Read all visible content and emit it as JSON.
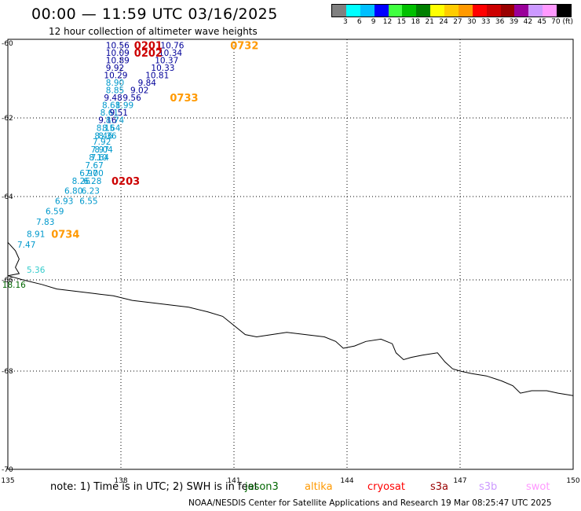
{
  "header": {
    "title": "00:00 — 11:59 UTC 03/16/2025",
    "subtitle": "12 hour collection of altimeter wave heights"
  },
  "legend": {
    "colors": [
      "#808080",
      "#00ffff",
      "#00bfff",
      "#0000ff",
      "#40ff40",
      "#00c000",
      "#008000",
      "#ffff00",
      "#ffcc00",
      "#ff9900",
      "#ff0000",
      "#cc0000",
      "#990000",
      "#990099",
      "#cc99ff",
      "#ff99ff",
      "#000000"
    ],
    "labels": [
      "3",
      "6",
      "9",
      "12",
      "15",
      "18",
      "21",
      "24",
      "27",
      "30",
      "33",
      "36",
      "39",
      "42",
      "45",
      "70 (ft)"
    ]
  },
  "map": {
    "lon_min": 135,
    "lon_max": 150,
    "lat_min": -70,
    "lat_max": -60,
    "lon_ticks": [
      "135",
      "138",
      "141",
      "144",
      "147",
      "150"
    ],
    "lat_ticks": [
      "-60",
      "-62",
      "-64",
      "-66",
      "-68",
      "-70"
    ]
  },
  "coastline": [
    [
      135.0,
      -65.1
    ],
    [
      135.2,
      -65.3
    ],
    [
      135.3,
      -65.5
    ],
    [
      135.2,
      -65.7
    ],
    [
      135.3,
      -65.85
    ],
    [
      135.0,
      -65.9
    ],
    [
      135.4,
      -66.0
    ],
    [
      135.9,
      -66.1
    ],
    [
      136.3,
      -66.2
    ],
    [
      136.8,
      -66.25
    ],
    [
      137.3,
      -66.3
    ],
    [
      137.8,
      -66.35
    ],
    [
      138.3,
      -66.45
    ],
    [
      138.8,
      -66.5
    ],
    [
      139.3,
      -66.55
    ],
    [
      139.8,
      -66.6
    ],
    [
      140.3,
      -66.7
    ],
    [
      140.7,
      -66.8
    ],
    [
      141.0,
      -67.0
    ],
    [
      141.3,
      -67.2
    ],
    [
      141.6,
      -67.25
    ],
    [
      142.0,
      -67.2
    ],
    [
      142.4,
      -67.15
    ],
    [
      142.9,
      -67.2
    ],
    [
      143.4,
      -67.25
    ],
    [
      143.7,
      -67.35
    ],
    [
      143.9,
      -67.5
    ],
    [
      144.2,
      -67.45
    ],
    [
      144.5,
      -67.35
    ],
    [
      144.9,
      -67.3
    ],
    [
      145.2,
      -67.4
    ],
    [
      145.3,
      -67.6
    ],
    [
      145.5,
      -67.75
    ],
    [
      145.7,
      -67.7
    ],
    [
      146.0,
      -67.65
    ],
    [
      146.4,
      -67.6
    ],
    [
      146.6,
      -67.8
    ],
    [
      146.8,
      -67.95
    ],
    [
      147.0,
      -68.0
    ],
    [
      147.3,
      -68.05
    ],
    [
      147.7,
      -68.1
    ],
    [
      148.1,
      -68.2
    ],
    [
      148.4,
      -68.3
    ],
    [
      148.6,
      -68.45
    ],
    [
      148.9,
      -68.4
    ],
    [
      149.3,
      -68.4
    ],
    [
      149.6,
      -68.45
    ],
    [
      150.0,
      -68.5
    ]
  ],
  "obs": [
    {
      "lon": 137.6,
      "lat": -60.05,
      "v": "10.56",
      "c": "#000099"
    },
    {
      "lon": 137.6,
      "lat": -60.25,
      "v": "10.09",
      "c": "#000099"
    },
    {
      "lon": 137.6,
      "lat": -60.45,
      "v": "10.89",
      "c": "#000099"
    },
    {
      "lon": 137.6,
      "lat": -60.65,
      "v": "9.92",
      "c": "#000099"
    },
    {
      "lon": 137.55,
      "lat": -60.85,
      "v": "10.29",
      "c": "#000099"
    },
    {
      "lon": 137.6,
      "lat": -61.05,
      "v": "8.90",
      "c": "#0099cc"
    },
    {
      "lon": 137.6,
      "lat": -61.25,
      "v": "8.85",
      "c": "#0099cc"
    },
    {
      "lon": 137.55,
      "lat": -61.45,
      "v": "9.48",
      "c": "#000099"
    },
    {
      "lon": 137.5,
      "lat": -61.65,
      "v": "8.61",
      "c": "#0099cc"
    },
    {
      "lon": 137.45,
      "lat": -61.85,
      "v": "8.61",
      "c": "#0099cc"
    },
    {
      "lon": 137.4,
      "lat": -62.05,
      "v": "9.16",
      "c": "#000099"
    },
    {
      "lon": 137.35,
      "lat": -62.25,
      "v": "8.15",
      "c": "#0099cc"
    },
    {
      "lon": 137.3,
      "lat": -62.45,
      "v": "8.46",
      "c": "#0099cc"
    },
    {
      "lon": 137.25,
      "lat": -62.6,
      "v": "7.92",
      "c": "#0099cc"
    },
    {
      "lon": 137.2,
      "lat": -62.8,
      "v": "7.97",
      "c": "#0099cc"
    },
    {
      "lon": 137.15,
      "lat": -63.0,
      "v": "8.10",
      "c": "#0099cc"
    },
    {
      "lon": 137.05,
      "lat": -63.2,
      "v": "7.67",
      "c": "#0099cc"
    },
    {
      "lon": 136.9,
      "lat": -63.4,
      "v": "6.97",
      "c": "#0099cc"
    },
    {
      "lon": 136.7,
      "lat": -63.6,
      "v": "8.26",
      "c": "#0099cc"
    },
    {
      "lon": 136.5,
      "lat": -63.85,
      "v": "6.80",
      "c": "#0099cc"
    },
    {
      "lon": 136.25,
      "lat": -64.1,
      "v": "6.93",
      "c": "#0099cc"
    },
    {
      "lon": 136.0,
      "lat": -64.35,
      "v": "6.59",
      "c": "#0099cc"
    },
    {
      "lon": 135.75,
      "lat": -64.6,
      "v": "7.83",
      "c": "#0099cc"
    },
    {
      "lon": 135.5,
      "lat": -64.9,
      "v": "8.91",
      "c": "#0099cc"
    },
    {
      "lon": 135.25,
      "lat": -65.15,
      "v": "7.47",
      "c": "#0099cc"
    },
    {
      "lon": 135.5,
      "lat": -65.75,
      "v": "5.36",
      "c": "#33cccc"
    },
    {
      "lon": 134.85,
      "lat": -66.1,
      "v": "18.16",
      "c": "#006600"
    },
    {
      "lon": 139.05,
      "lat": -60.05,
      "v": "10.76",
      "c": "#000099"
    },
    {
      "lon": 139.0,
      "lat": -60.25,
      "v": "10.34",
      "c": "#000099"
    },
    {
      "lon": 138.9,
      "lat": -60.45,
      "v": "10.37",
      "c": "#000099"
    },
    {
      "lon": 138.8,
      "lat": -60.65,
      "v": "10.33",
      "c": "#000099"
    },
    {
      "lon": 138.65,
      "lat": -60.85,
      "v": "10.81",
      "c": "#000099"
    },
    {
      "lon": 138.45,
      "lat": -61.05,
      "v": "9.84",
      "c": "#000099"
    },
    {
      "lon": 138.25,
      "lat": -61.25,
      "v": "9.02",
      "c": "#000099"
    },
    {
      "lon": 138.05,
      "lat": -61.45,
      "v": "9.56",
      "c": "#000099"
    },
    {
      "lon": 137.85,
      "lat": -61.65,
      "v": "8.99",
      "c": "#0099cc"
    },
    {
      "lon": 137.7,
      "lat": -61.85,
      "v": "9.51",
      "c": "#000099"
    },
    {
      "lon": 137.6,
      "lat": -62.05,
      "v": "8.74",
      "c": "#0099cc"
    },
    {
      "lon": 137.5,
      "lat": -62.25,
      "v": "8.64",
      "c": "#0099cc"
    },
    {
      "lon": 137.4,
      "lat": -62.45,
      "v": "8.36",
      "c": "#0099cc"
    },
    {
      "lon": 137.3,
      "lat": -62.8,
      "v": "8.04",
      "c": "#0099cc"
    },
    {
      "lon": 137.2,
      "lat": -63.0,
      "v": "7.64",
      "c": "#0099cc"
    },
    {
      "lon": 137.05,
      "lat": -63.4,
      "v": "7.00",
      "c": "#0099cc"
    },
    {
      "lon": 137.0,
      "lat": -63.6,
      "v": "6.28",
      "c": "#0099cc"
    },
    {
      "lon": 136.95,
      "lat": -63.85,
      "v": "6.23",
      "c": "#0099cc"
    },
    {
      "lon": 136.9,
      "lat": -64.1,
      "v": "6.55",
      "c": "#0099cc"
    }
  ],
  "passes": [
    {
      "lon": 138.35,
      "lat": -60.05,
      "v": "0201",
      "c": "#cc0000"
    },
    {
      "lon": 138.35,
      "lat": -60.25,
      "v": "0202",
      "c": "#cc0000"
    },
    {
      "lon": 140.9,
      "lat": -60.05,
      "v": "0732",
      "c": "#ff9900"
    },
    {
      "lon": 139.3,
      "lat": -61.45,
      "v": "0733",
      "c": "#ff9900"
    },
    {
      "lon": 137.75,
      "lat": -63.6,
      "v": "0203",
      "c": "#cc0000"
    },
    {
      "lon": 136.15,
      "lat": -64.9,
      "v": "0734",
      "c": "#ff9900"
    }
  ],
  "footer": {
    "note": "note: 1) Time is in UTC; 2) SWH is in feet",
    "credit": "NOAA/NESDIS Center for Satellite Applications and Research   19 Mar 08:25:47 UTC 2025",
    "satellites": [
      {
        "name": "jason3",
        "color": "#006600",
        "x": 312
      },
      {
        "name": "altika",
        "color": "#ff9900",
        "x": 388
      },
      {
        "name": "cryosat",
        "color": "#ff0000",
        "x": 468
      },
      {
        "name": "s3a",
        "color": "#990000",
        "x": 548
      },
      {
        "name": "s3b",
        "color": "#cc99ff",
        "x": 610
      },
      {
        "name": "swot",
        "color": "#ff99ff",
        "x": 670
      }
    ]
  }
}
